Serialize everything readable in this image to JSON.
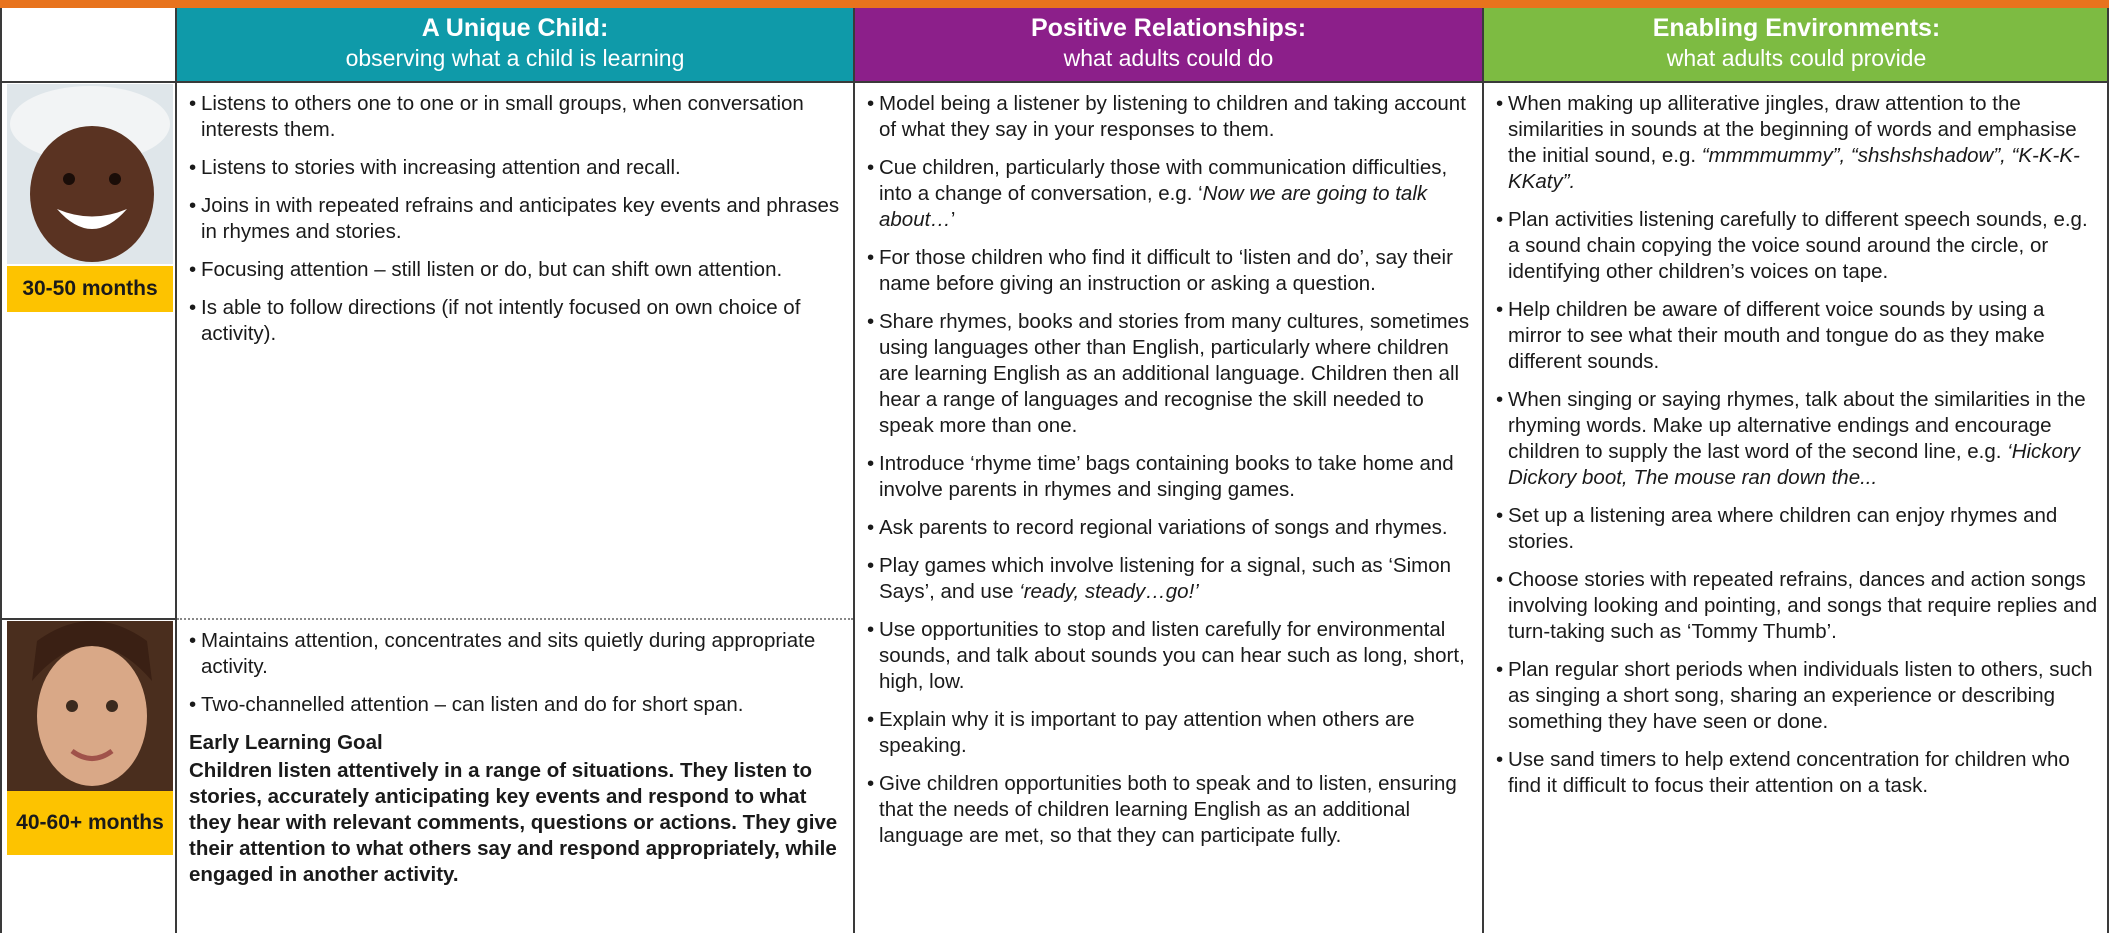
{
  "header": {
    "columns": [
      {
        "title": "A Unique Child:",
        "subtitle": "observing what a child is learning"
      },
      {
        "title": "Positive Relationships:",
        "subtitle": "what adults could do"
      },
      {
        "title": "Enabling Environments:",
        "subtitle": "what adults could provide"
      }
    ]
  },
  "unique_child": {
    "rows": [
      {
        "age": "30-50 months",
        "items": [
          [
            "Listens to others one to one or in small groups, when conversation interests them."
          ],
          [
            "Listens to stories with increasing attention and recall."
          ],
          [
            "Joins in with repeated refrains and anticipates key events and phrases in rhymes and stories."
          ],
          [
            "Focusing attention – still listen or do, but can shift own attention."
          ],
          [
            "Is able to follow directions (if not intently focused on own choice of activity)."
          ]
        ]
      },
      {
        "age": "40-60+ months",
        "items": [
          [
            "Maintains attention, concentrates and sits quietly during appropriate activity."
          ],
          [
            "Two-channelled attention – can listen and do for short span."
          ]
        ],
        "goal_heading": "Early Learning Goal",
        "goal": "Children listen attentively in a range of situations. They listen to stories, accurately anticipating key events and respond to what they hear with relevant comments, questions or actions. They give their attention to what others say and respond appropriately, while engaged in another activity."
      }
    ]
  },
  "positive_relationships": {
    "items": [
      [
        "Model being a listener by listening to children and taking account of what they say in your responses to them."
      ],
      [
        "Cue children, particularly those with communication difficulties, into a change of conversation, e.g. ‘",
        "Now we are going to talk about…",
        "’"
      ],
      [
        "For those children who find it difficult to ‘listen and do’, say their name before giving an instruction or asking a question."
      ],
      [
        "Share rhymes, books and stories from many cultures, sometimes using languages other than English, particularly where children are learning English as an additional language. Children then all hear a range of languages and recognise the skill needed to speak more than one."
      ],
      [
        "Introduce ‘rhyme time’ bags containing books to take home and involve parents in rhymes and singing games."
      ],
      [
        "Ask parents to record regional variations of songs and rhymes."
      ],
      [
        "Play games which involve listening for a signal, such as ‘Simon Says’, and use ",
        "‘ready, steady…go!’"
      ],
      [
        "Use opportunities to stop and listen carefully for environmental sounds, and talk about sounds you can hear such as long, short, high, low."
      ],
      [
        "Explain why it is important to pay attention when others are speaking."
      ],
      [
        "Give children opportunities both to speak and to listen, ensuring that the needs of children learning English as an additional language are met, so that they can participate fully."
      ]
    ]
  },
  "enabling_environments": {
    "items": [
      [
        "When making up alliterative jingles, draw attention to the similarities in sounds at the beginning of words and emphasise the initial sound, e.g. ",
        "“mmmmummy”, “shshshshadow”, “K-K-K-KKaty”."
      ],
      [
        "Plan activities listening carefully to different speech sounds, e.g. a sound chain copying the voice sound around the circle, or identifying other children’s voices on tape."
      ],
      [
        "Help children be aware of different voice sounds by using a mirror to see what their mouth and tongue do as they make different sounds."
      ],
      [
        "When singing or saying rhymes, talk about the similarities in the rhyming words. Make up alternative endings and encourage children to supply the last word of the second line, e.g. ",
        "‘Hickory Dickory boot, The mouse ran down the..."
      ],
      [
        "Set up a listening area where children can enjoy rhymes and stories."
      ],
      [
        "Choose stories with repeated refrains, dances and action songs involving looking and pointing, and songs that require replies and turn-taking such as ‘Tommy Thumb’."
      ],
      [
        "Plan regular short periods when individuals listen to others, such as singing a short song, sharing an experience or describing something they have seen or done."
      ],
      [
        "Use sand timers to help extend concentration for children who find it difficult to focus their attention on a task."
      ]
    ]
  }
}
